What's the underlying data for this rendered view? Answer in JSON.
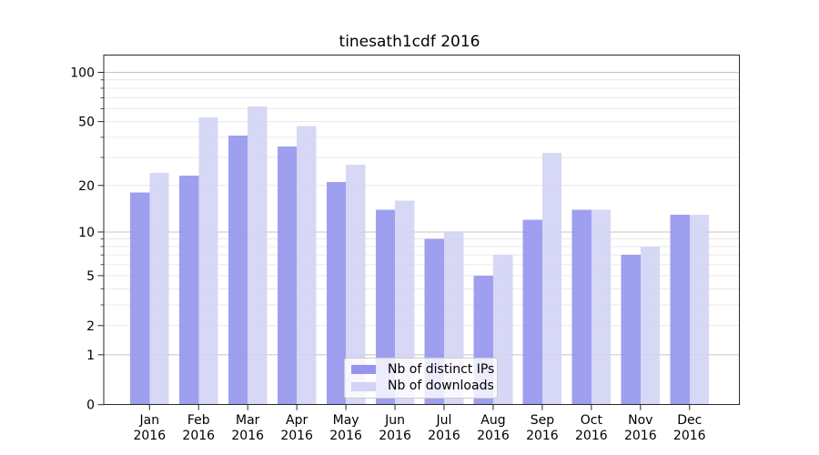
{
  "chart_data": {
    "type": "bar",
    "title": "tinesath1cdf 2016",
    "categories": [
      "Jan",
      "Feb",
      "Mar",
      "Apr",
      "May",
      "Jun",
      "Jul",
      "Aug",
      "Sep",
      "Oct",
      "Nov",
      "Dec"
    ],
    "category_year": "2016",
    "series": [
      {
        "name": "Nb of distinct IPs",
        "color": "#9595ee",
        "values": [
          18,
          23,
          41,
          35,
          21,
          14,
          9,
          5,
          12,
          14,
          7,
          13
        ]
      },
      {
        "name": "Nb of downloads",
        "color": "#d3d3f5",
        "values": [
          24,
          53,
          62,
          47,
          27,
          16,
          10,
          7,
          32,
          14,
          8,
          13
        ]
      }
    ],
    "xlabel": "",
    "ylabel": "",
    "y_scale": "log1p",
    "ylim": [
      0,
      130
    ],
    "y_ticks_labeled": [
      0,
      1,
      2,
      5,
      10,
      20,
      50,
      100
    ],
    "y_gridlines_major": [
      1,
      10,
      100
    ],
    "y_gridlines_minor": [
      2,
      3,
      4,
      5,
      6,
      7,
      8,
      9,
      20,
      30,
      40,
      50,
      60,
      70,
      80,
      90
    ],
    "y_minor_tick_values": [
      3,
      4,
      6,
      7,
      8,
      9,
      30,
      40,
      60,
      70,
      80,
      90
    ],
    "grid": true,
    "legend_position": "lower-center",
    "colors": {
      "frame": "#2a2a2a",
      "grid_major": "#c4c4c4",
      "grid_minor": "#eaeaea",
      "text": "#000000",
      "background": "#ffffff"
    }
  }
}
